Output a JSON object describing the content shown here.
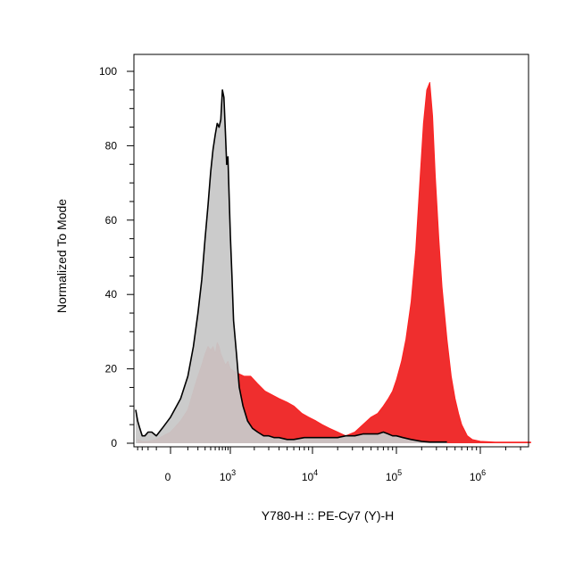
{
  "chart_data": {
    "type": "area",
    "xlabel": "Y780-H :: PE-Cy7 (Y)-H",
    "ylabel": "Normalized To Mode",
    "x_scale": "biexponential",
    "xlim": [
      -400,
      4000000
    ],
    "ylim": [
      0,
      100
    ],
    "grid": false,
    "y_ticks": [
      0,
      20,
      40,
      60,
      80,
      100
    ],
    "y_tick_labels": [
      "0",
      "20",
      "40",
      "60",
      "80",
      "100"
    ],
    "x_ticks": [
      {
        "value": 0,
        "base": "0",
        "exp": ""
      },
      {
        "value": 1000,
        "base": "10",
        "exp": "3"
      },
      {
        "value": 10000,
        "base": "10",
        "exp": "4"
      },
      {
        "value": 100000,
        "base": "10",
        "exp": "5"
      },
      {
        "value": 1000000,
        "base": "10",
        "exp": "6"
      }
    ],
    "series": [
      {
        "color": "#ff2020",
        "fill": "#ee1c1c",
        "x": [
          -400,
          -300,
          -200,
          -100,
          0,
          50,
          100,
          150,
          200,
          250,
          300,
          350,
          400,
          450,
          500,
          550,
          600,
          650,
          700,
          800,
          900,
          1000,
          1200,
          1500,
          1800,
          2200,
          2700,
          3300,
          4000,
          5000,
          6000,
          7500,
          9000,
          11000,
          13000,
          16000,
          20000,
          25000,
          32000,
          40000,
          50000,
          60000,
          70000,
          80000,
          90000,
          100000,
          115000,
          130000,
          150000,
          170000,
          190000,
          210000,
          230000,
          250000,
          270000,
          290000,
          320000,
          350000,
          400000,
          450000,
          500000,
          550000,
          600000,
          700000,
          800000,
          1000000,
          1500000,
          2000000,
          3000000,
          4000000
        ],
        "values": [
          1,
          0.5,
          0.5,
          1,
          3,
          6,
          9,
          14,
          18,
          21,
          24,
          26,
          25,
          26,
          24,
          27,
          26,
          24,
          23,
          21,
          22,
          20,
          19,
          18,
          18,
          16,
          14,
          13,
          12,
          11,
          10,
          8,
          7,
          6,
          5,
          4,
          3,
          2,
          3,
          5,
          7,
          8,
          10,
          12,
          14,
          17,
          22,
          28,
          38,
          52,
          70,
          86,
          95,
          97,
          88,
          72,
          55,
          42,
          28,
          18,
          12,
          8,
          5,
          2,
          1,
          0.5,
          0.3,
          0.3,
          0.3,
          0.3
        ]
      },
      {
        "color": "#000000",
        "fill": "#c8c8c8",
        "x": [
          -450,
          -400,
          -350,
          -300,
          -250,
          -200,
          -150,
          -100,
          -50,
          0,
          50,
          100,
          150,
          200,
          250,
          300,
          350,
          400,
          450,
          500,
          550,
          600,
          650,
          700,
          750,
          800,
          850,
          900,
          950,
          1000,
          1050,
          1100,
          1200,
          1300,
          1450,
          1650,
          1900,
          2200,
          2600,
          3000,
          3500,
          4000,
          5000,
          6000,
          8000,
          10000,
          13000,
          16000,
          20000,
          25000,
          32000,
          40000,
          50000,
          60000,
          70000,
          80000,
          90000,
          100000,
          120000,
          150000,
          200000,
          250000,
          300000,
          400000
        ],
        "values": [
          9,
          6,
          4,
          2,
          2,
          3,
          3,
          2,
          4,
          7,
          12,
          18,
          26,
          35,
          44,
          55,
          64,
          73,
          79,
          83,
          86,
          85,
          87,
          95,
          93,
          84,
          75,
          77,
          66,
          56,
          45,
          33,
          24,
          15,
          10,
          6,
          4,
          3,
          2,
          2,
          1.5,
          1.5,
          1,
          1,
          1.5,
          1.5,
          1.5,
          1.5,
          1.5,
          2,
          2,
          2.5,
          2.5,
          2.5,
          3,
          2.5,
          2,
          2,
          1.5,
          1,
          0.5,
          0.3,
          0.3,
          0.3
        ]
      }
    ]
  }
}
